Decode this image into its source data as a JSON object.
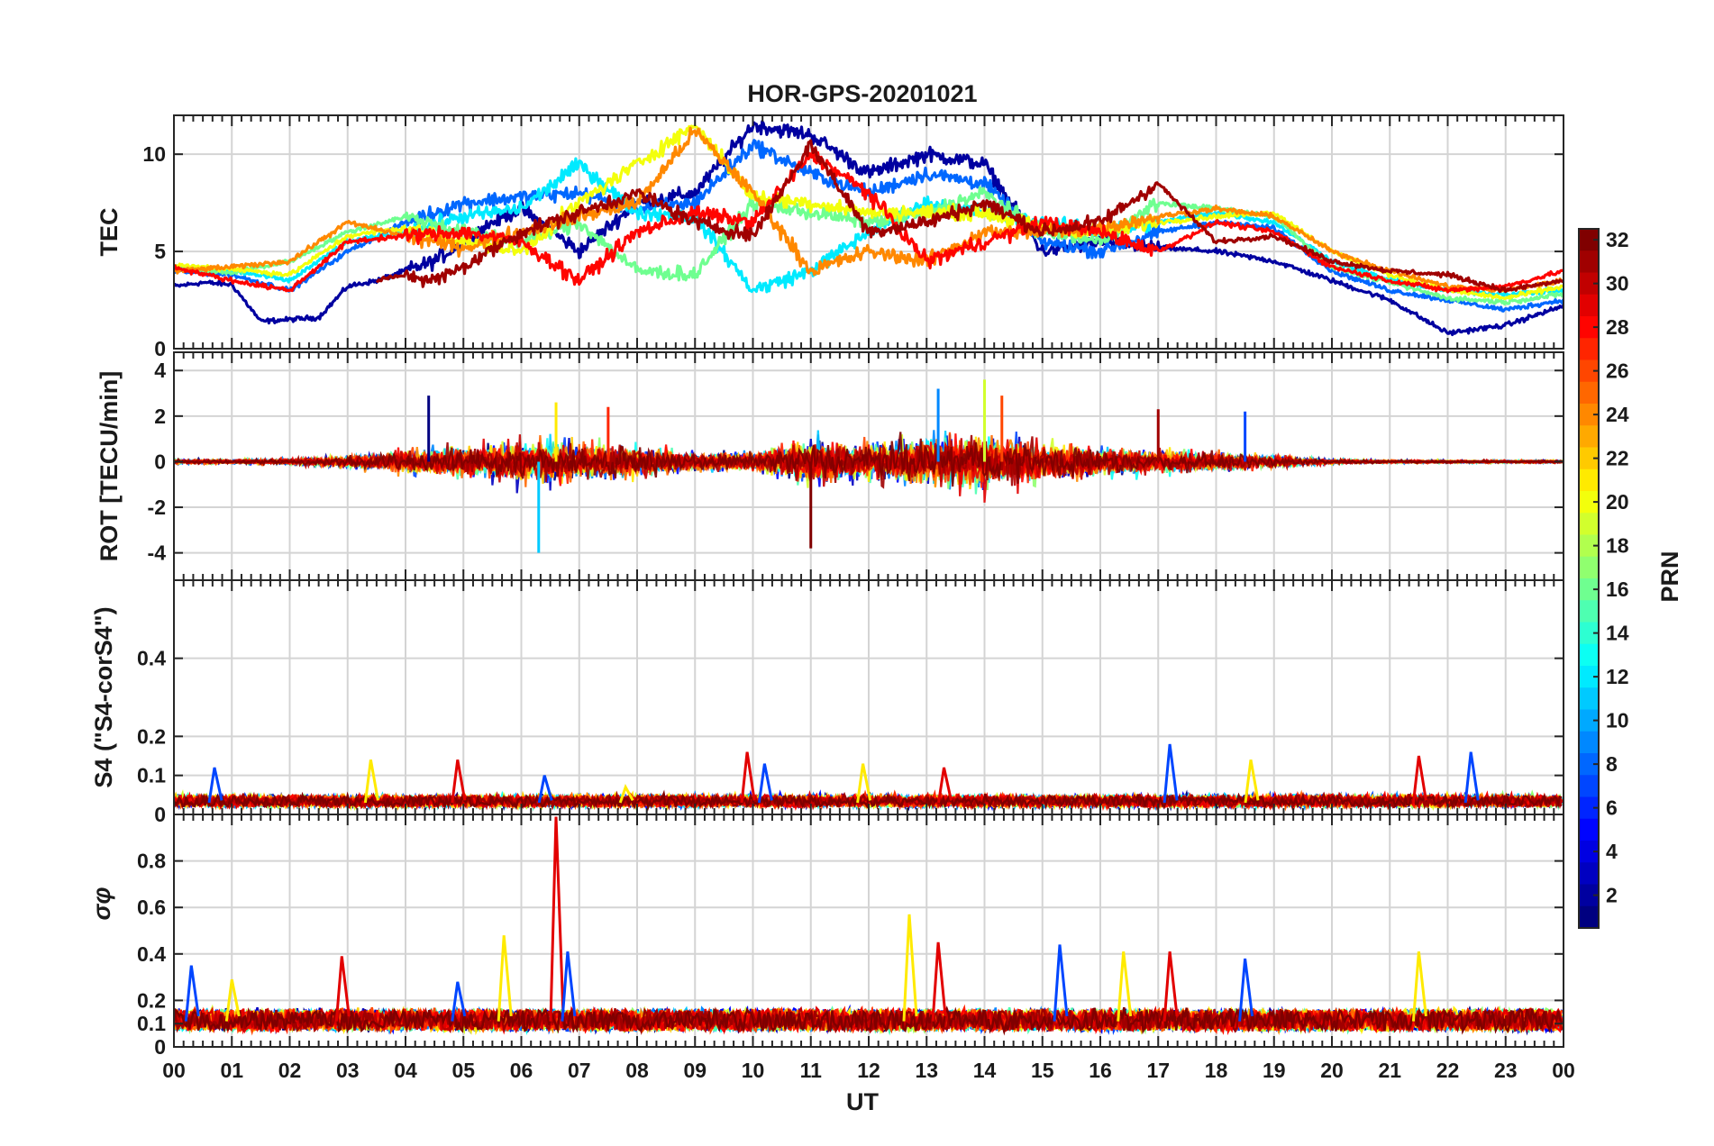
{
  "chart_data": {
    "type": "line",
    "title": "HOR-GPS-20201021",
    "xlabel": "UT",
    "x_ticks": [
      "00",
      "01",
      "02",
      "03",
      "04",
      "05",
      "06",
      "07",
      "08",
      "09",
      "10",
      "11",
      "12",
      "13",
      "14",
      "15",
      "16",
      "17",
      "18",
      "19",
      "20",
      "21",
      "22",
      "23",
      "00"
    ],
    "xlim": [
      0,
      24
    ],
    "grid": true,
    "colorbar": {
      "label": "PRN",
      "colormap": "jet",
      "range": [
        1,
        32
      ],
      "ticks": [
        "2",
        "4",
        "6",
        "8",
        "10",
        "12",
        "14",
        "16",
        "18",
        "20",
        "22",
        "24",
        "26",
        "28",
        "30",
        "32"
      ]
    },
    "panels": [
      {
        "name": "tec",
        "ylabel": "TEC",
        "ylim": [
          0,
          12
        ],
        "yticks": [
          "0",
          "5",
          "10"
        ],
        "series": [
          {
            "prn": 2,
            "x": [
              0,
              0.5,
              1,
              1.5,
              2.5,
              3,
              3.5,
              4.5,
              5.5,
              6,
              7,
              8,
              9,
              10,
              11,
              12,
              13,
              14,
              15,
              16,
              17,
              18,
              19,
              20,
              21,
              22,
              23,
              24
            ],
            "y": [
              3.2,
              3.4,
              3.3,
              1.4,
              1.6,
              3.2,
              3.5,
              4.5,
              6.5,
              7.2,
              5.0,
              7.5,
              8.0,
              11.5,
              11.0,
              9.0,
              10.0,
              9.5,
              5.0,
              5.5,
              5.2,
              5.0,
              4.5,
              3.5,
              2.5,
              0.8,
              1.2,
              2.2
            ]
          },
          {
            "prn": 8,
            "x": [
              0,
              1,
              2,
              3,
              4,
              5,
              6,
              7,
              8,
              9,
              10,
              11,
              12,
              13,
              14,
              15,
              16,
              17,
              18,
              19,
              20,
              21,
              22,
              23,
              24
            ],
            "y": [
              4.0,
              3.8,
              3.0,
              5.0,
              6.5,
              7.5,
              7.8,
              8.0,
              7.2,
              7.5,
              10.5,
              9.0,
              8.0,
              9.0,
              8.5,
              5.5,
              5.0,
              6.0,
              6.5,
              6.2,
              4.0,
              3.0,
              2.5,
              2.0,
              2.5
            ]
          },
          {
            "prn": 12,
            "x": [
              0,
              1,
              2,
              3,
              4,
              5,
              6,
              7,
              8,
              9,
              10,
              11,
              12,
              13,
              14,
              15,
              16,
              17,
              18,
              19,
              20,
              21,
              22,
              23,
              24
            ],
            "y": [
              4.2,
              4.0,
              3.5,
              5.5,
              6.0,
              6.8,
              7.2,
              9.5,
              7.0,
              6.8,
              3.0,
              4.0,
              6.0,
              7.5,
              7.0,
              6.5,
              6.0,
              6.5,
              7.0,
              6.5,
              4.5,
              3.5,
              3.0,
              2.8,
              3.0
            ]
          },
          {
            "prn": 16,
            "x": [
              0,
              1,
              2,
              3,
              4,
              5,
              6,
              7,
              8,
              9,
              10,
              11,
              12,
              13,
              14,
              15,
              16,
              17,
              18,
              19,
              20,
              21,
              22,
              23,
              24
            ],
            "y": [
              4.1,
              3.9,
              4.5,
              6.0,
              6.8,
              6.0,
              5.5,
              6.5,
              4.0,
              3.8,
              7.5,
              7.0,
              6.5,
              7.0,
              8.0,
              6.0,
              5.5,
              7.5,
              7.2,
              6.8,
              4.2,
              3.4,
              2.6,
              2.4,
              2.8
            ]
          },
          {
            "prn": 20,
            "x": [
              0,
              1,
              2,
              3,
              4,
              5,
              6,
              7,
              8,
              9,
              10,
              11,
              12,
              13,
              14,
              15,
              16,
              17,
              18,
              19,
              20,
              21,
              22,
              23,
              24
            ],
            "y": [
              4.3,
              4.1,
              3.8,
              5.8,
              6.2,
              5.5,
              5.0,
              7.5,
              9.5,
              11.5,
              7.8,
              7.5,
              7.0,
              7.0,
              7.0,
              6.2,
              6.0,
              6.5,
              6.8,
              7.0,
              5.0,
              3.8,
              3.0,
              2.6,
              3.2
            ]
          },
          {
            "prn": 24,
            "x": [
              0,
              1,
              2,
              3,
              4,
              5,
              6,
              7,
              8,
              9,
              10,
              11,
              12,
              13,
              14,
              15,
              16,
              17,
              18,
              19,
              20,
              21,
              22,
              23,
              24
            ],
            "y": [
              4.0,
              4.2,
              4.5,
              6.5,
              5.8,
              5.2,
              6.0,
              6.8,
              7.5,
              11.2,
              8.0,
              4.0,
              5.0,
              4.5,
              6.0,
              6.0,
              6.2,
              6.8,
              7.2,
              6.8,
              5.0,
              4.0,
              3.2,
              3.0,
              3.5
            ]
          },
          {
            "prn": 28,
            "x": [
              0,
              1,
              2,
              3,
              4,
              5,
              6,
              7,
              8,
              9,
              10,
              11,
              12,
              13,
              14,
              15,
              16,
              17,
              18,
              19,
              20,
              21,
              22,
              23,
              24
            ],
            "y": [
              4.2,
              3.5,
              3.0,
              5.5,
              5.8,
              6.0,
              5.5,
              3.5,
              6.0,
              7.0,
              6.5,
              10.0,
              8.0,
              4.5,
              5.5,
              6.5,
              6.0,
              5.0,
              6.5,
              6.0,
              4.2,
              3.5,
              3.0,
              3.2,
              4.0
            ]
          },
          {
            "prn": 31,
            "x": [
              3.5,
              4,
              4.5,
              5,
              6,
              7,
              8,
              9,
              10,
              11,
              12,
              13,
              14,
              15,
              16,
              17,
              18,
              19,
              20,
              21,
              22,
              23,
              24
            ],
            "y": [
              3.5,
              3.8,
              3.5,
              4.2,
              6.0,
              7.0,
              8.0,
              6.5,
              5.8,
              10.5,
              6.0,
              6.5,
              7.5,
              6.0,
              6.5,
              8.5,
              5.5,
              5.8,
              4.5,
              4.0,
              3.8,
              3.0,
              3.5
            ]
          }
        ]
      },
      {
        "name": "rot",
        "ylabel": "ROT [TECU/min]",
        "ylim": [
          -5.2,
          4.8
        ],
        "yticks": [
          "4",
          "2",
          "0",
          "-2",
          "-4"
        ],
        "activity_envelope": {
          "x": [
            0,
            1,
            2,
            3,
            4,
            5,
            6,
            7,
            8,
            9,
            10,
            11,
            12,
            13,
            14,
            15,
            16,
            17,
            18,
            19,
            20,
            21,
            22,
            23,
            24
          ],
          "amplitude": [
            0.3,
            0.3,
            0.4,
            0.8,
            1.5,
            2.0,
            3.0,
            2.5,
            2.0,
            1.2,
            1.2,
            3.0,
            2.5,
            3.5,
            3.8,
            2.5,
            2.0,
            1.5,
            1.2,
            0.8,
            0.3,
            0.2,
            0.2,
            0.2,
            0.2
          ]
        },
        "spikes": [
          [
            4.4,
            2.9
          ],
          [
            6.3,
            -4.0
          ],
          [
            6.6,
            2.6
          ],
          [
            7.5,
            2.4
          ],
          [
            11.0,
            -3.8
          ],
          [
            13.2,
            3.2
          ],
          [
            14.0,
            3.6
          ],
          [
            14.3,
            2.9
          ],
          [
            17.0,
            2.3
          ],
          [
            18.5,
            2.2
          ]
        ]
      },
      {
        "name": "s4",
        "ylabel": "S4 (\"S4-corS4\")",
        "ylim": [
          0,
          0.6
        ],
        "yticks": [
          "0",
          "0.1",
          "0.2",
          "0.4"
        ],
        "baseline": 0.03,
        "peaks": [
          [
            0.7,
            0.12
          ],
          [
            3.4,
            0.14
          ],
          [
            4.9,
            0.14
          ],
          [
            6.4,
            0.1
          ],
          [
            7.8,
            0.07
          ],
          [
            9.9,
            0.16
          ],
          [
            10.2,
            0.13
          ],
          [
            11.9,
            0.13
          ],
          [
            13.3,
            0.12
          ],
          [
            17.2,
            0.18
          ],
          [
            18.6,
            0.14
          ],
          [
            21.5,
            0.15
          ],
          [
            22.4,
            0.16
          ]
        ]
      },
      {
        "name": "sigma_phi",
        "ylabel": "σφ",
        "ylim": [
          0,
          1.0
        ],
        "yticks": [
          "0",
          "0.1",
          "0.2",
          "0.4",
          "0.6",
          "0.8"
        ],
        "baseline": 0.11,
        "peaks": [
          [
            0.3,
            0.35
          ],
          [
            1.0,
            0.29
          ],
          [
            2.9,
            0.39
          ],
          [
            4.9,
            0.28
          ],
          [
            5.7,
            0.48
          ],
          [
            6.6,
            0.99
          ],
          [
            6.8,
            0.41
          ],
          [
            12.7,
            0.57
          ],
          [
            13.2,
            0.45
          ],
          [
            15.3,
            0.44
          ],
          [
            16.4,
            0.41
          ],
          [
            17.2,
            0.41
          ],
          [
            18.5,
            0.38
          ],
          [
            21.5,
            0.41
          ]
        ]
      }
    ]
  }
}
